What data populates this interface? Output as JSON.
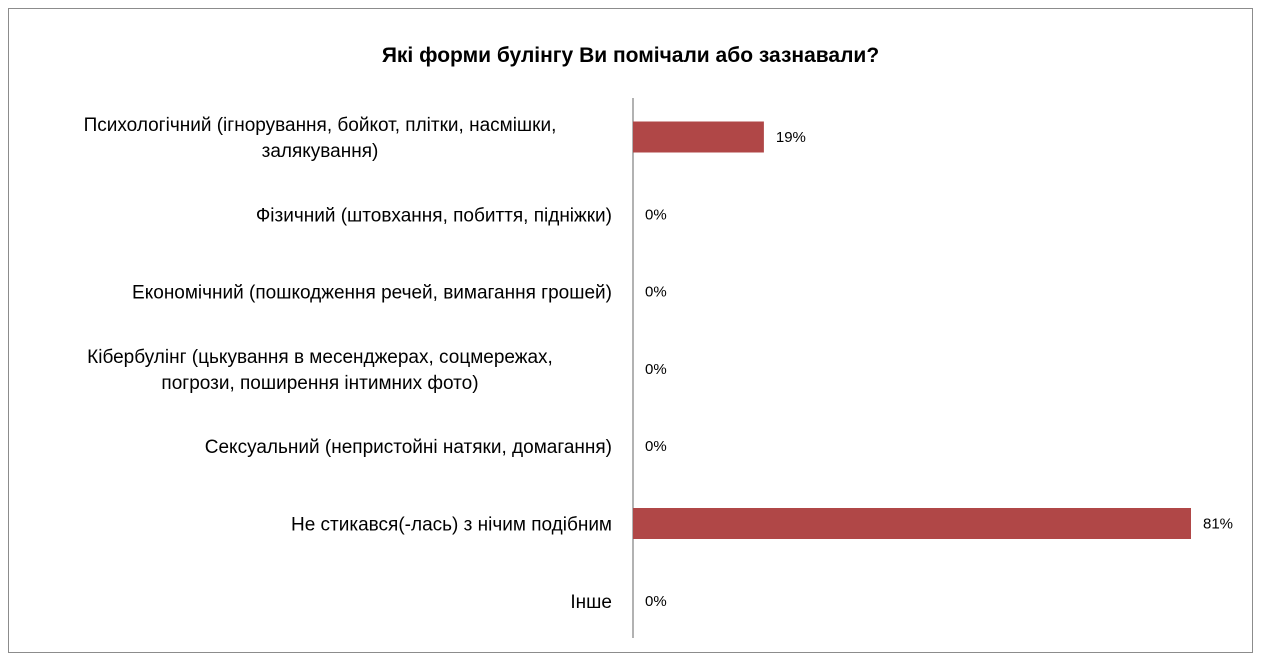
{
  "chart_data": {
    "type": "bar",
    "orientation": "horizontal",
    "title": "Які форми булінгу Ви помічали або зазнавали?",
    "xlabel": "",
    "ylabel": "",
    "categories": [
      [
        "Психологічний (ігнорування, бойкот, плітки, насмішки,",
        "залякування)"
      ],
      [
        "Фізичний (штовхання, побиття, підніжки)"
      ],
      [
        "Економічний (пошкодження речей, вимагання грошей)"
      ],
      [
        "Кібербулінг (цькування в месенджерах, соцмережах,",
        "погрози, поширення інтимних фото)"
      ],
      [
        "Сексуальний (непристойні натяки, домагання)"
      ],
      [
        "Не стикався(-лась) з нічим подібним"
      ],
      [
        "Інше"
      ]
    ],
    "values": [
      19,
      0,
      0,
      0,
      0,
      81,
      0
    ],
    "value_labels": [
      "19%",
      "0%",
      "0%",
      "0%",
      "0%",
      "81%",
      "0%"
    ],
    "xlim": [
      0,
      81
    ],
    "grid": false,
    "legend": "none",
    "bar_color": "#b04747",
    "axis_color": "#888888"
  }
}
